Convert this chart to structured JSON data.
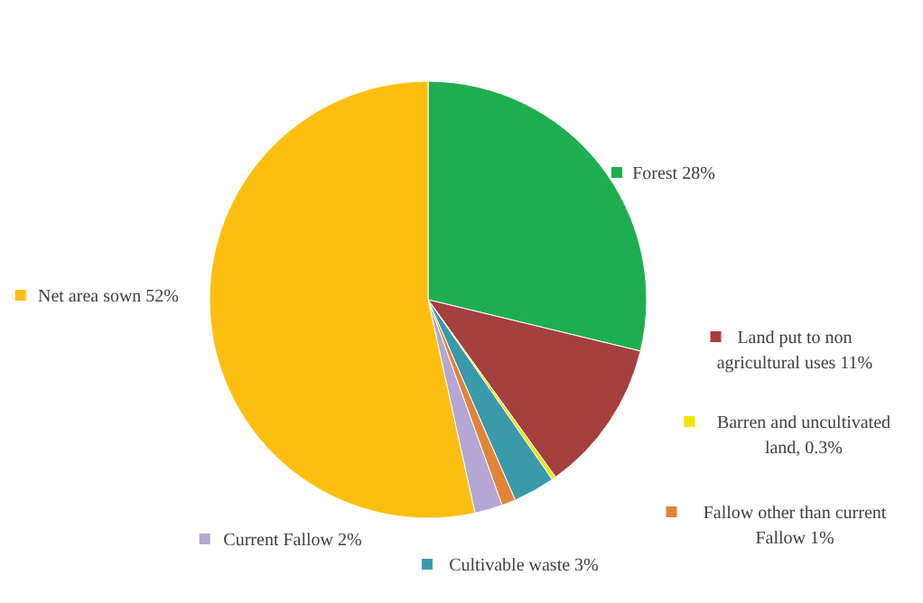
{
  "chart_data": {
    "type": "pie",
    "categories": [
      "Forest",
      "Land put to non agricultural uses",
      "Barren and uncultivated land",
      "Cultivable waste",
      "Fallow other than current Fallow",
      "Current Fallow",
      "Net area sown"
    ],
    "values": [
      28,
      11,
      0.3,
      3,
      1,
      2,
      52
    ],
    "value_labels": [
      "28%",
      "11%",
      ", 0.3%",
      "3%",
      "1%",
      "2%",
      "52%"
    ],
    "colors": [
      "#1fae4f",
      "#a5403f",
      "#f2e600",
      "#3a9aaa",
      "#e0843a",
      "#b5a6d3",
      "#fdbf0f"
    ],
    "legend": "right"
  }
}
